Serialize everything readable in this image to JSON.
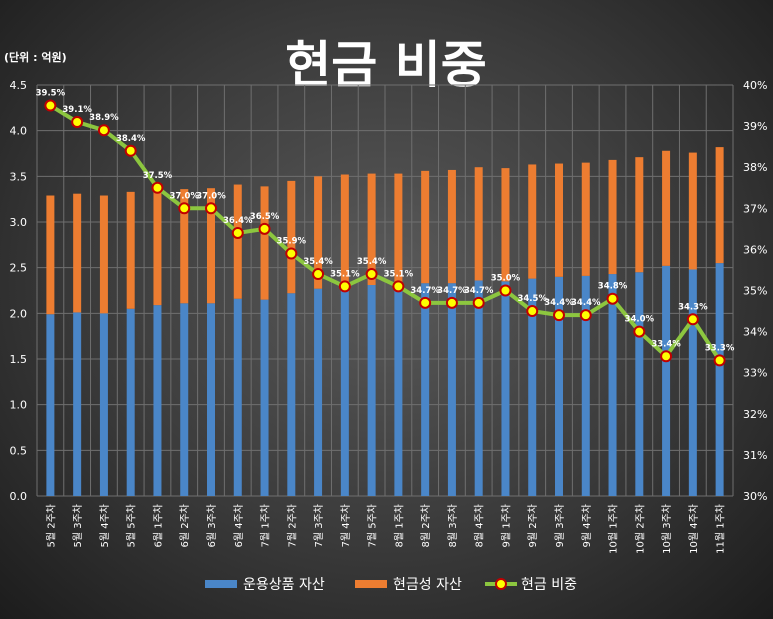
{
  "chart_data": {
    "type": "bar",
    "title": "현금 비중",
    "unit_label": "(단위 : 억원)",
    "categories": [
      "5월 2주차",
      "5월 3주차",
      "5월 4주차",
      "5월 5주차",
      "6월 1주차",
      "6월 2주차",
      "6월 3주차",
      "6월 4주차",
      "7월 1주차",
      "7월 2주차",
      "7월 3주차",
      "7월 4주차",
      "7월 5주차",
      "8월 1주차",
      "8월 2주차",
      "8월 3주차",
      "8월 4주차",
      "9월 1주차",
      "9월 2주차",
      "9월 3주차",
      "9월 4주차",
      "10월 1주차",
      "10월 2주차",
      "10월 3주차",
      "10월 4주차",
      "11월 1주차"
    ],
    "y_left": {
      "min": 0,
      "max": 4.5,
      "ticks": [
        "0.0",
        "0.5",
        "1.0",
        "1.5",
        "2.0",
        "2.5",
        "3.0",
        "3.5",
        "4.0",
        "4.5"
      ]
    },
    "y_right": {
      "min": 30,
      "max": 40,
      "ticks": [
        "30%",
        "31%",
        "32%",
        "33%",
        "34%",
        "35%",
        "36%",
        "37%",
        "38%",
        "39%",
        "40%"
      ]
    },
    "series": [
      {
        "name": "운용상품 자산",
        "type": "bar",
        "stack": true,
        "color": "#4a86c8",
        "values": [
          1.99,
          2.01,
          2.0,
          2.05,
          2.09,
          2.11,
          2.11,
          2.16,
          2.15,
          2.22,
          2.27,
          2.28,
          2.31,
          2.29,
          2.33,
          2.33,
          2.36,
          2.35,
          2.38,
          2.4,
          2.41,
          2.43,
          2.45,
          2.52,
          2.48,
          2.55
        ]
      },
      {
        "name": "현금성 자산",
        "type": "bar",
        "stack": true,
        "color": "#ed7d31",
        "values": [
          1.3,
          1.3,
          1.29,
          1.28,
          1.3,
          1.25,
          1.26,
          1.25,
          1.24,
          1.23,
          1.23,
          1.24,
          1.22,
          1.24,
          1.23,
          1.24,
          1.24,
          1.24,
          1.25,
          1.24,
          1.24,
          1.25,
          1.26,
          1.26,
          1.28,
          1.27
        ]
      },
      {
        "name": "현금 비중",
        "type": "line",
        "axis": "right",
        "color": "#8cc63f",
        "marker_color": "#ffff00",
        "values": [
          39.5,
          39.1,
          38.9,
          38.4,
          37.5,
          37.0,
          37.0,
          36.4,
          36.5,
          35.9,
          35.4,
          35.1,
          35.4,
          35.1,
          34.7,
          34.7,
          34.7,
          35.0,
          34.5,
          34.4,
          34.4,
          34.8,
          34.0,
          33.4,
          34.3,
          33.3
        ],
        "labels": [
          "39.5%",
          "39.1%",
          "38.9%",
          "38.4%",
          "37.5%",
          "37.0%",
          "37.0%",
          "36.4%",
          "36.5%",
          "35.9%",
          "35.4%",
          "35.1%",
          "35.4%",
          "35.1%",
          "34.7%",
          "34.7%",
          "34.7%",
          "35.0%",
          "34.5%",
          "34.4%",
          "34.4%",
          "34.8%",
          "34.0%",
          "33.4%",
          "34.3%",
          "33.3%"
        ]
      }
    ],
    "gridlines": true,
    "legend_position": "bottom"
  }
}
